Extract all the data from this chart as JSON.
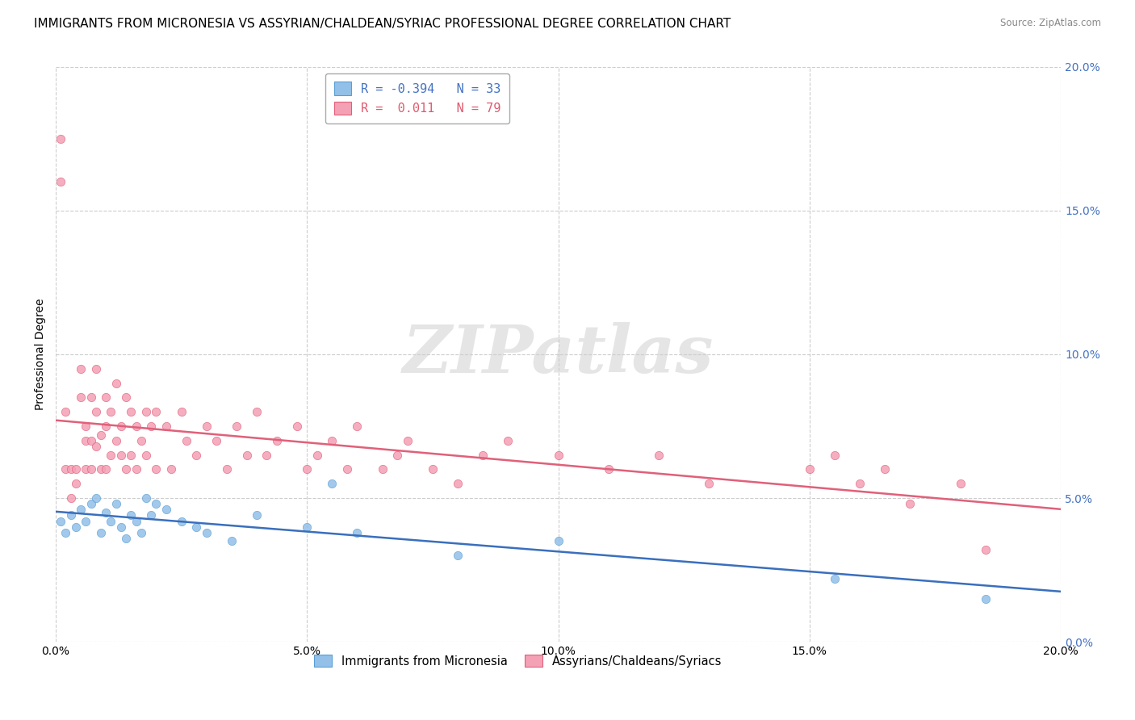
{
  "title": "IMMIGRANTS FROM MICRONESIA VS ASSYRIAN/CHALDEAN/SYRIAC PROFESSIONAL DEGREE CORRELATION CHART",
  "source": "Source: ZipAtlas.com",
  "ylabel": "Professional Degree",
  "watermark": "ZIPatlas",
  "xlim": [
    0.0,
    0.2
  ],
  "ylim": [
    0.0,
    0.2
  ],
  "xtick_vals": [
    0.0,
    0.05,
    0.1,
    0.15,
    0.2
  ],
  "ytick_vals": [
    0.0,
    0.05,
    0.1,
    0.15,
    0.2
  ],
  "xticklabels": [
    "0.0%",
    "5.0%",
    "10.0%",
    "15.0%",
    "20.0%"
  ],
  "yticklabels_right": [
    "0.0%",
    "5.0%",
    "10.0%",
    "15.0%",
    "20.0%"
  ],
  "series": [
    {
      "name": "Immigrants from Micronesia",
      "color": "#92c0e8",
      "edge_color": "#5a9fd4",
      "R": -0.394,
      "N": 33,
      "line_color": "#3a6fbd",
      "x": [
        0.001,
        0.002,
        0.003,
        0.004,
        0.005,
        0.006,
        0.007,
        0.008,
        0.009,
        0.01,
        0.011,
        0.012,
        0.013,
        0.014,
        0.015,
        0.016,
        0.017,
        0.018,
        0.019,
        0.02,
        0.022,
        0.025,
        0.028,
        0.03,
        0.035,
        0.04,
        0.05,
        0.055,
        0.06,
        0.08,
        0.1,
        0.155,
        0.185
      ],
      "y": [
        0.042,
        0.038,
        0.044,
        0.04,
        0.046,
        0.042,
        0.048,
        0.05,
        0.038,
        0.045,
        0.042,
        0.048,
        0.04,
        0.036,
        0.044,
        0.042,
        0.038,
        0.05,
        0.044,
        0.048,
        0.046,
        0.042,
        0.04,
        0.038,
        0.035,
        0.044,
        0.04,
        0.055,
        0.038,
        0.03,
        0.035,
        0.022,
        0.015
      ]
    },
    {
      "name": "Assyrians/Chaldeans/Syriacs",
      "color": "#f4a0b5",
      "edge_color": "#e0607a",
      "R": 0.011,
      "N": 79,
      "line_color": "#e0607a",
      "x": [
        0.001,
        0.001,
        0.002,
        0.002,
        0.003,
        0.003,
        0.004,
        0.004,
        0.005,
        0.005,
        0.006,
        0.006,
        0.006,
        0.007,
        0.007,
        0.007,
        0.008,
        0.008,
        0.008,
        0.009,
        0.009,
        0.01,
        0.01,
        0.01,
        0.011,
        0.011,
        0.012,
        0.012,
        0.013,
        0.013,
        0.014,
        0.014,
        0.015,
        0.015,
        0.016,
        0.016,
        0.017,
        0.018,
        0.018,
        0.019,
        0.02,
        0.02,
        0.022,
        0.023,
        0.025,
        0.026,
        0.028,
        0.03,
        0.032,
        0.034,
        0.036,
        0.038,
        0.04,
        0.042,
        0.044,
        0.048,
        0.05,
        0.052,
        0.055,
        0.058,
        0.06,
        0.065,
        0.068,
        0.07,
        0.075,
        0.08,
        0.085,
        0.09,
        0.1,
        0.11,
        0.12,
        0.13,
        0.15,
        0.155,
        0.16,
        0.165,
        0.17,
        0.18,
        0.185
      ],
      "y": [
        0.175,
        0.16,
        0.08,
        0.06,
        0.06,
        0.05,
        0.06,
        0.055,
        0.095,
        0.085,
        0.07,
        0.075,
        0.06,
        0.085,
        0.07,
        0.06,
        0.095,
        0.08,
        0.068,
        0.072,
        0.06,
        0.085,
        0.075,
        0.06,
        0.08,
        0.065,
        0.09,
        0.07,
        0.075,
        0.065,
        0.085,
        0.06,
        0.08,
        0.065,
        0.075,
        0.06,
        0.07,
        0.08,
        0.065,
        0.075,
        0.08,
        0.06,
        0.075,
        0.06,
        0.08,
        0.07,
        0.065,
        0.075,
        0.07,
        0.06,
        0.075,
        0.065,
        0.08,
        0.065,
        0.07,
        0.075,
        0.06,
        0.065,
        0.07,
        0.06,
        0.075,
        0.06,
        0.065,
        0.07,
        0.06,
        0.055,
        0.065,
        0.07,
        0.065,
        0.06,
        0.065,
        0.055,
        0.06,
        0.065,
        0.055,
        0.06,
        0.048,
        0.055,
        0.032
      ]
    }
  ],
  "grid_color": "#cccccc",
  "background_color": "#ffffff",
  "title_fontsize": 11,
  "axis_label_fontsize": 10,
  "tick_fontsize": 10,
  "legend_R_color_micro": "#4472c4",
  "legend_R_color_assyrian": "#e05a6e",
  "right_tick_color": "#4472c4"
}
